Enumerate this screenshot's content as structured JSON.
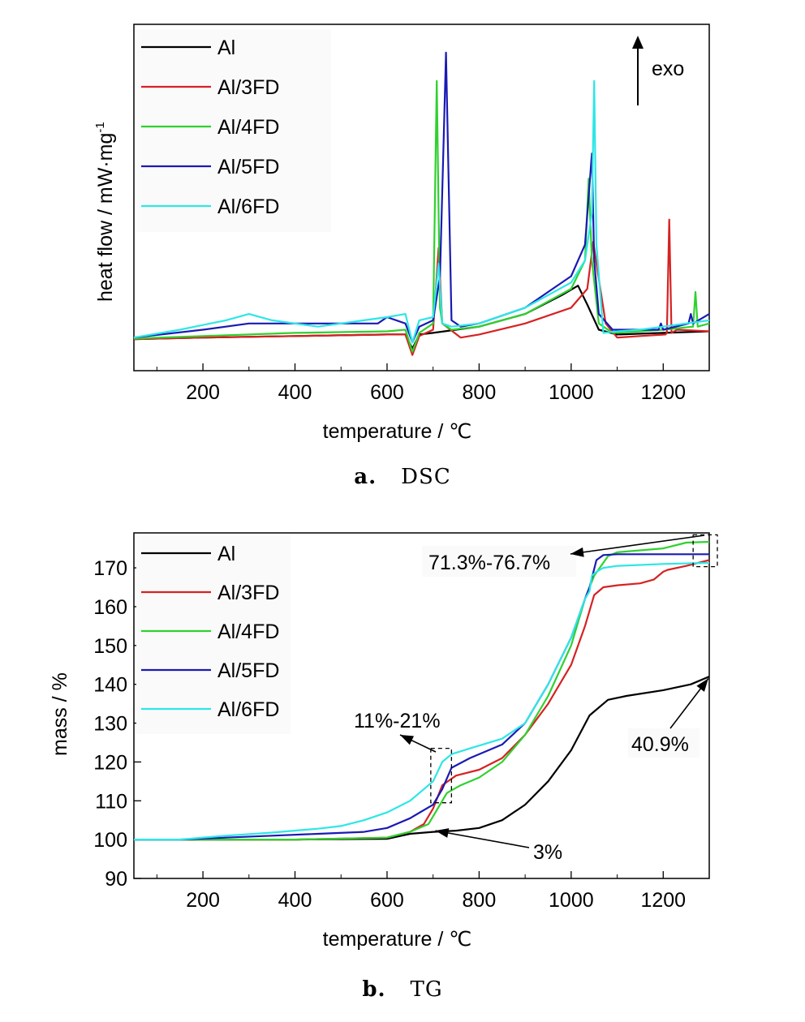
{
  "chart_data": [
    {
      "type": "line",
      "caption_letter": "a.",
      "caption_text": "DSC",
      "xlabel": "temperature / ℃",
      "ylabel": "heat flow / mW·mg",
      "ylabel_superscript": "-1",
      "xlim": [
        50,
        1300
      ],
      "ylim": [
        -1,
        10
      ],
      "xticks": [
        200,
        400,
        600,
        800,
        1000,
        1200
      ],
      "yticks": [],
      "annotation": "exo",
      "legend_position": "top-left",
      "series": [
        {
          "name": "Al",
          "color": "#000000",
          "x": [
            50,
            200,
            400,
            600,
            640,
            655,
            670,
            700,
            800,
            900,
            980,
            1015,
            1035,
            1060,
            1100,
            1200,
            1300
          ],
          "y": [
            0,
            0.05,
            0.1,
            0.15,
            0.15,
            -0.3,
            0.15,
            0.2,
            0.4,
            0.8,
            1.4,
            1.7,
            1.1,
            0.3,
            0.15,
            0.2,
            0.25
          ]
        },
        {
          "name": "Al/3FD",
          "color": "#d62222",
          "x": [
            50,
            200,
            400,
            600,
            640,
            655,
            670,
            700,
            712,
            720,
            760,
            800,
            900,
            1000,
            1035,
            1048,
            1055,
            1075,
            1100,
            1150,
            1205,
            1208,
            1213,
            1218,
            1230,
            1300
          ],
          "y": [
            0,
            0.05,
            0.1,
            0.15,
            0.15,
            -0.5,
            0.1,
            0.3,
            2.9,
            0.5,
            0.05,
            0.15,
            0.5,
            1.0,
            1.6,
            3.1,
            2.4,
            0.5,
            0.05,
            0.1,
            0.15,
            0.2,
            3.8,
            0.2,
            0.3,
            0.25
          ]
        },
        {
          "name": "Al/4FD",
          "color": "#2fd12f",
          "x": [
            50,
            200,
            400,
            600,
            640,
            655,
            670,
            700,
            708,
            715,
            720,
            740,
            800,
            900,
            1000,
            1030,
            1038,
            1045,
            1060,
            1090,
            1150,
            1200,
            1265,
            1270,
            1275,
            1300
          ],
          "y": [
            0.02,
            0.1,
            0.2,
            0.25,
            0.3,
            -0.4,
            0.2,
            0.5,
            8.2,
            1.0,
            0.5,
            0.3,
            0.4,
            0.8,
            1.6,
            2.5,
            5.1,
            2.5,
            0.5,
            0.2,
            0.25,
            0.3,
            0.4,
            1.5,
            0.4,
            0.5
          ]
        },
        {
          "name": "Al/5FD",
          "color": "#1a1ab4",
          "x": [
            50,
            200,
            300,
            400,
            580,
            600,
            640,
            655,
            670,
            700,
            715,
            728,
            740,
            760,
            800,
            900,
            1000,
            1030,
            1045,
            1050,
            1060,
            1090,
            1150,
            1190,
            1195,
            1200,
            1255,
            1260,
            1265,
            1300
          ],
          "y": [
            0.05,
            0.3,
            0.5,
            0.5,
            0.5,
            0.7,
            0.5,
            -0.1,
            0.4,
            0.6,
            2.0,
            9.1,
            0.6,
            0.4,
            0.5,
            1.0,
            2.0,
            3.0,
            5.9,
            2.5,
            0.8,
            0.3,
            0.3,
            0.3,
            0.5,
            0.3,
            0.5,
            0.8,
            0.5,
            0.8
          ]
        },
        {
          "name": "Al/6FD",
          "color": "#2ee6e6",
          "x": [
            50,
            150,
            250,
            300,
            350,
            450,
            550,
            600,
            640,
            655,
            670,
            700,
            712,
            720,
            740,
            800,
            900,
            1000,
            1030,
            1045,
            1050,
            1055,
            1070,
            1100,
            1150,
            1200,
            1300
          ],
          "y": [
            0.05,
            0.3,
            0.6,
            0.8,
            0.6,
            0.4,
            0.6,
            0.7,
            0.8,
            -0.1,
            0.6,
            0.7,
            2.4,
            0.5,
            0.4,
            0.5,
            1.0,
            1.8,
            2.5,
            4.0,
            8.2,
            3.0,
            0.2,
            0.25,
            0.3,
            0.4,
            0.6
          ]
        }
      ]
    },
    {
      "type": "line",
      "caption_letter": "b.",
      "caption_text": "TG",
      "xlabel": "temperature / ℃",
      "ylabel": "mass / %",
      "xlim": [
        50,
        1300
      ],
      "ylim": [
        90,
        179
      ],
      "xticks": [
        200,
        400,
        600,
        800,
        1000,
        1200
      ],
      "yticks": [
        90,
        100,
        110,
        120,
        130,
        140,
        150,
        160,
        170
      ],
      "legend_position": "top-left",
      "annotations": [
        {
          "text": "71.3%-76.7%",
          "x": 1290,
          "y": 174
        },
        {
          "text": "11%-21%",
          "x": 715,
          "y": 116
        },
        {
          "text": "3%",
          "x": 720,
          "y": 102.5
        },
        {
          "text": "40.9%",
          "x": 1295,
          "y": 142
        }
      ],
      "series": [
        {
          "name": "Al",
          "color": "#000000",
          "x": [
            50,
            200,
            400,
            600,
            650,
            700,
            750,
            800,
            850,
            900,
            950,
            1000,
            1040,
            1080,
            1120,
            1200,
            1260,
            1300
          ],
          "y": [
            100,
            100,
            100,
            100.2,
            101.5,
            102,
            102.3,
            103,
            105,
            109,
            115,
            123,
            132,
            136,
            137,
            138.5,
            140,
            142
          ]
        },
        {
          "name": "Al/3FD",
          "color": "#d62222",
          "x": [
            50,
            200,
            400,
            600,
            650,
            680,
            700,
            720,
            750,
            800,
            850,
            900,
            950,
            1000,
            1030,
            1050,
            1070,
            1100,
            1150,
            1180,
            1200,
            1210,
            1250,
            1300
          ],
          "y": [
            100,
            100,
            100,
            100.5,
            102,
            104,
            108,
            114,
            116.5,
            118,
            121,
            127,
            135,
            145,
            155,
            163,
            165,
            165.5,
            166,
            167,
            169,
            169.5,
            170.5,
            172
          ]
        },
        {
          "name": "Al/4FD",
          "color": "#2fd12f",
          "x": [
            50,
            200,
            400,
            600,
            650,
            690,
            710,
            730,
            760,
            800,
            850,
            900,
            950,
            1000,
            1030,
            1050,
            1080,
            1100,
            1200,
            1250,
            1300
          ],
          "y": [
            100,
            100,
            100,
            100.5,
            102,
            104,
            108,
            112,
            114,
            116,
            120,
            127,
            137,
            150,
            162,
            168,
            173,
            174,
            175,
            176.5,
            176.7
          ]
        },
        {
          "name": "Al/5FD",
          "color": "#1a1ab4",
          "x": [
            50,
            150,
            250,
            350,
            450,
            550,
            600,
            650,
            700,
            720,
            740,
            780,
            850,
            900,
            950,
            1000,
            1030,
            1040,
            1055,
            1070,
            1100,
            1200,
            1300
          ],
          "y": [
            100,
            100,
            100.5,
            101,
            101.5,
            102,
            103,
            105.5,
            109,
            113,
            118.5,
            121,
            124.5,
            130,
            140,
            152,
            162,
            165,
            172,
            173.3,
            173.5,
            173.5,
            173.5
          ]
        },
        {
          "name": "Al/6FD",
          "color": "#2ee6e6",
          "x": [
            50,
            150,
            250,
            350,
            450,
            500,
            550,
            600,
            650,
            700,
            720,
            740,
            780,
            850,
            900,
            950,
            1000,
            1030,
            1040,
            1045,
            1055,
            1070,
            1100,
            1200,
            1300
          ],
          "y": [
            100,
            100,
            101,
            101.8,
            102.8,
            103.5,
            105,
            107,
            110,
            115,
            120,
            122,
            123.5,
            126,
            130,
            140,
            152,
            162,
            164,
            168,
            169,
            170,
            170.5,
            171,
            171.3
          ]
        }
      ]
    }
  ]
}
